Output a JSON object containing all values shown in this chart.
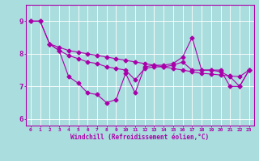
{
  "xlabel": "Windchill (Refroidissement éolien,°C)",
  "xlim": [
    -0.5,
    23.5
  ],
  "ylim": [
    5.8,
    9.5
  ],
  "yticks": [
    6,
    7,
    8,
    9
  ],
  "xticks": [
    0,
    1,
    2,
    3,
    4,
    5,
    6,
    7,
    8,
    9,
    10,
    11,
    12,
    13,
    14,
    15,
    16,
    17,
    18,
    19,
    20,
    21,
    22,
    23
  ],
  "bg_color": "#aadddd",
  "line_color": "#aa00aa",
  "grid_color": "#ffffff",
  "line1_x": [
    0,
    1,
    2,
    3,
    4,
    5,
    6,
    7,
    8,
    9,
    10,
    11,
    12,
    13,
    14,
    15,
    16,
    17,
    18,
    19,
    20,
    21,
    22,
    23
  ],
  "line1_y": [
    9.0,
    9.0,
    8.3,
    8.2,
    8.1,
    8.05,
    8.0,
    7.95,
    7.9,
    7.85,
    7.8,
    7.75,
    7.7,
    7.65,
    7.6,
    7.55,
    7.5,
    7.45,
    7.4,
    7.38,
    7.35,
    7.32,
    7.3,
    7.5
  ],
  "line2_x": [
    0,
    1,
    2,
    3,
    4,
    5,
    6,
    7,
    8,
    9,
    10,
    11,
    12,
    13,
    14,
    15,
    16,
    17,
    18,
    19,
    20,
    21,
    22,
    23
  ],
  "line2_y": [
    9.0,
    9.0,
    8.3,
    8.1,
    7.3,
    7.1,
    6.8,
    6.75,
    6.5,
    6.6,
    7.4,
    6.8,
    7.6,
    7.65,
    7.65,
    7.7,
    7.9,
    8.5,
    7.5,
    7.5,
    7.5,
    7.0,
    7.0,
    7.5
  ],
  "line3_x": [
    2,
    3,
    4,
    5,
    6,
    7,
    8,
    9,
    10,
    11,
    12,
    13,
    14,
    15,
    16,
    17,
    18,
    19,
    20,
    21,
    22,
    23
  ],
  "line3_y": [
    8.3,
    8.1,
    7.95,
    7.85,
    7.75,
    7.7,
    7.6,
    7.55,
    7.5,
    7.2,
    7.55,
    7.6,
    7.6,
    7.65,
    7.75,
    7.5,
    7.5,
    7.5,
    7.45,
    7.3,
    7.0,
    7.5
  ]
}
